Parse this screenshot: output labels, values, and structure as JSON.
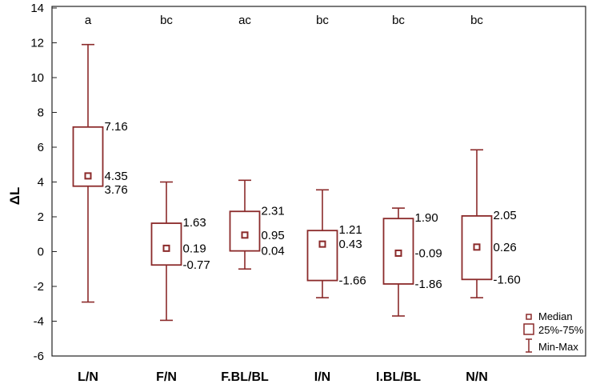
{
  "chart_data": {
    "type": "box",
    "ylabel": "ΔL",
    "ylim": [
      -6,
      14
    ],
    "yticks": [
      -6,
      -4,
      -2,
      0,
      2,
      4,
      6,
      8,
      10,
      12,
      14
    ],
    "grid": false,
    "legend_position": "bottom-right",
    "legend": [
      {
        "symbol": "median-marker",
        "label": "Median"
      },
      {
        "symbol": "box",
        "label": "25%-75%"
      },
      {
        "symbol": "whisker",
        "label": "Min-Max"
      }
    ],
    "colors": {
      "box": "#8b2a2a",
      "median": "#8b2a2a"
    },
    "groups": [
      {
        "category": "L/N",
        "annotation": "a",
        "min": -2.9,
        "q1": 3.76,
        "median": 4.35,
        "q3": 7.16,
        "max": 11.9,
        "labels": {
          "q3": "7.16",
          "median": "4.35",
          "q1": "3.76"
        }
      },
      {
        "category": "F/N",
        "annotation": "bc",
        "min": -3.95,
        "q1": -0.77,
        "median": 0.19,
        "q3": 1.63,
        "max": 4.0,
        "labels": {
          "q3": "1.63",
          "median": "0.19",
          "q1": "-0.77"
        }
      },
      {
        "category": "F.BL/BL",
        "annotation": "ac",
        "min": -1.0,
        "q1": 0.04,
        "median": 0.95,
        "q3": 2.31,
        "max": 4.1,
        "labels": {
          "q3": "2.31",
          "median": "0.95",
          "q1": "0.04"
        }
      },
      {
        "category": "I/N",
        "annotation": "bc",
        "min": -2.65,
        "q1": -1.66,
        "median": 0.43,
        "q3": 1.21,
        "max": 3.55,
        "labels": {
          "q3": "1.21",
          "median": "0.43",
          "q1": "-1.66"
        }
      },
      {
        "category": "I.BL/BL",
        "annotation": "bc",
        "min": -3.7,
        "q1": -1.86,
        "median": -0.09,
        "q3": 1.9,
        "max": 2.5,
        "labels": {
          "q3": "1.90",
          "median": "-0.09",
          "q1": "-1.86"
        }
      },
      {
        "category": "N/N",
        "annotation": "bc",
        "min": -2.65,
        "q1": -1.6,
        "median": 0.26,
        "q3": 2.05,
        "max": 5.85,
        "labels": {
          "q3": "2.05",
          "median": "0.26",
          "q1": "-1.60"
        }
      }
    ]
  }
}
